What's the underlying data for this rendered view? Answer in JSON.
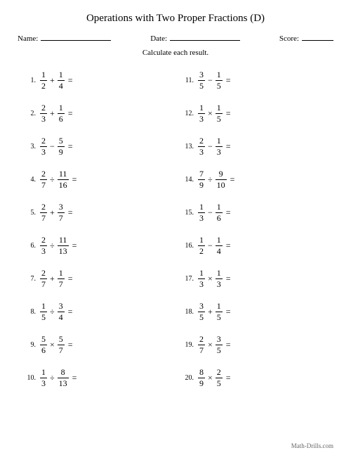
{
  "title": "Operations with Two Proper Fractions (D)",
  "header": {
    "name_label": "Name:",
    "date_label": "Date:",
    "score_label": "Score:"
  },
  "instructions": "Calculate each result.",
  "footer": "Math-Drills.com",
  "problems": [
    {
      "n": "1.",
      "a_num": "1",
      "a_den": "2",
      "op": "+",
      "b_num": "1",
      "b_den": "4"
    },
    {
      "n": "2.",
      "a_num": "2",
      "a_den": "3",
      "op": "+",
      "b_num": "1",
      "b_den": "6"
    },
    {
      "n": "3.",
      "a_num": "2",
      "a_den": "3",
      "op": "−",
      "b_num": "5",
      "b_den": "9"
    },
    {
      "n": "4.",
      "a_num": "2",
      "a_den": "7",
      "op": "÷",
      "b_num": "11",
      "b_den": "16"
    },
    {
      "n": "5.",
      "a_num": "2",
      "a_den": "7",
      "op": "+",
      "b_num": "3",
      "b_den": "7"
    },
    {
      "n": "6.",
      "a_num": "2",
      "a_den": "3",
      "op": "÷",
      "b_num": "11",
      "b_den": "13"
    },
    {
      "n": "7.",
      "a_num": "2",
      "a_den": "7",
      "op": "+",
      "b_num": "1",
      "b_den": "7"
    },
    {
      "n": "8.",
      "a_num": "1",
      "a_den": "5",
      "op": "÷",
      "b_num": "3",
      "b_den": "4"
    },
    {
      "n": "9.",
      "a_num": "5",
      "a_den": "6",
      "op": "×",
      "b_num": "5",
      "b_den": "7"
    },
    {
      "n": "10.",
      "a_num": "1",
      "a_den": "3",
      "op": "÷",
      "b_num": "8",
      "b_den": "13"
    },
    {
      "n": "11.",
      "a_num": "3",
      "a_den": "5",
      "op": "−",
      "b_num": "1",
      "b_den": "5"
    },
    {
      "n": "12.",
      "a_num": "1",
      "a_den": "3",
      "op": "×",
      "b_num": "1",
      "b_den": "5"
    },
    {
      "n": "13.",
      "a_num": "2",
      "a_den": "3",
      "op": "−",
      "b_num": "1",
      "b_den": "3"
    },
    {
      "n": "14.",
      "a_num": "7",
      "a_den": "9",
      "op": "÷",
      "b_num": "9",
      "b_den": "10"
    },
    {
      "n": "15.",
      "a_num": "1",
      "a_den": "3",
      "op": "−",
      "b_num": "1",
      "b_den": "6"
    },
    {
      "n": "16.",
      "a_num": "1",
      "a_den": "2",
      "op": "−",
      "b_num": "1",
      "b_den": "4"
    },
    {
      "n": "17.",
      "a_num": "1",
      "a_den": "3",
      "op": "×",
      "b_num": "1",
      "b_den": "3"
    },
    {
      "n": "18.",
      "a_num": "3",
      "a_den": "5",
      "op": "+",
      "b_num": "1",
      "b_den": "5"
    },
    {
      "n": "19.",
      "a_num": "2",
      "a_den": "7",
      "op": "×",
      "b_num": "3",
      "b_den": "5"
    },
    {
      "n": "20.",
      "a_num": "8",
      "a_den": "9",
      "op": "×",
      "b_num": "2",
      "b_den": "5"
    }
  ],
  "equals": "="
}
